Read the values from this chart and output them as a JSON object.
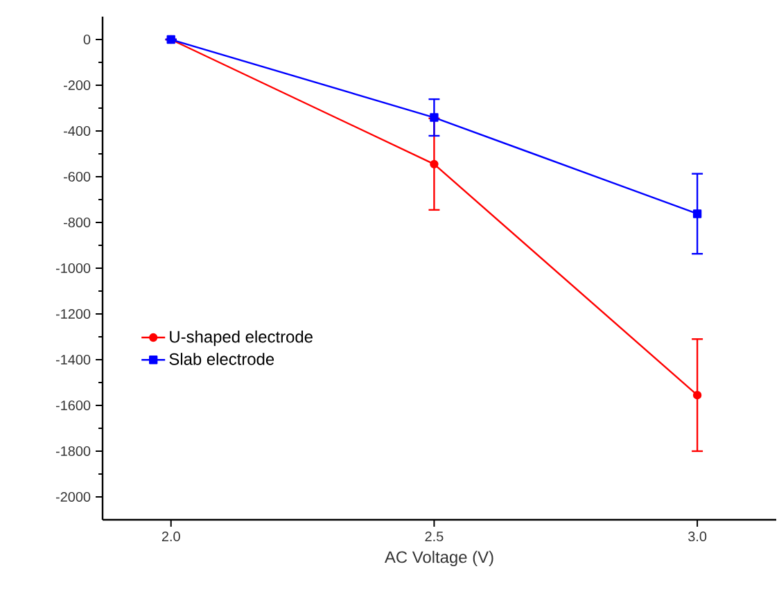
{
  "chart_data": {
    "type": "line",
    "xlabel": "AC Voltage (V)",
    "x": [
      2.0,
      2.5,
      3.0
    ],
    "series": [
      {
        "name": "U-shaped electrode",
        "color": "#ff0000",
        "marker": "circle",
        "values": [
          0,
          -545,
          -1555
        ],
        "errors": [
          null,
          200,
          245
        ]
      },
      {
        "name": "Slab electrode",
        "color": "#0000ff",
        "marker": "square",
        "values": [
          0,
          -341,
          -762
        ],
        "errors": [
          null,
          80,
          175
        ]
      }
    ],
    "xlim": [
      1.87,
      3.15
    ],
    "xticks": [
      {
        "value": 2.0,
        "label": "2.0"
      },
      {
        "value": 2.5,
        "label": "2.5"
      },
      {
        "value": 3.0,
        "label": "3.0"
      }
    ],
    "ylim": [
      -2100,
      100
    ],
    "yticks": [
      0,
      -200,
      -400,
      -600,
      -800,
      -1000,
      -1200,
      -1400,
      -1600,
      -1800,
      -2000
    ],
    "grid": false,
    "legend": "left",
    "line_style": "solid"
  }
}
